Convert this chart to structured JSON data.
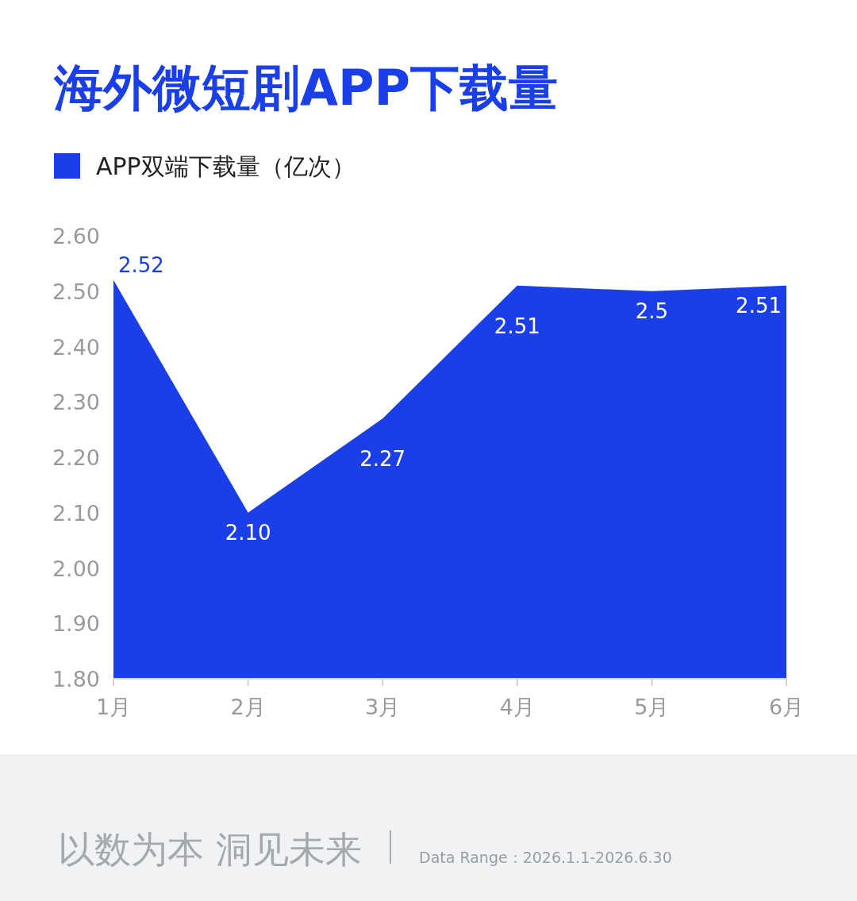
{
  "chart_data": {
    "type": "area",
    "title": "海外微短剧APP下载量",
    "categories": [
      "1月",
      "2月",
      "3月",
      "4月",
      "5月",
      "6月"
    ],
    "series": [
      {
        "name": "APP双端下载量（亿次）",
        "color": "#1a3fe8",
        "values": [
          2.52,
          2.1,
          2.27,
          2.51,
          2.5,
          2.51
        ],
        "value_labels": [
          "2.52",
          "2.10",
          "2.27",
          "2.51",
          "2.5",
          "2.51"
        ]
      }
    ],
    "ylim": [
      1.8,
      2.6
    ],
    "yticks": [
      {
        "value": 1.8,
        "label": "1.80"
      },
      {
        "value": 1.9,
        "label": "1.90"
      },
      {
        "value": 2.0,
        "label": "2.00"
      },
      {
        "value": 2.1,
        "label": "2.10"
      },
      {
        "value": 2.2,
        "label": "2.20"
      },
      {
        "value": 2.3,
        "label": "2.30"
      },
      {
        "value": 2.4,
        "label": "2.40"
      },
      {
        "value": 2.5,
        "label": "2.50"
      },
      {
        "value": 2.6,
        "label": "2.60"
      }
    ],
    "grid": false,
    "legend": "top left",
    "annotations": [
      "以数为本 洞见未来",
      "Data Range：2026.1.1-2026.6.30"
    ]
  }
}
